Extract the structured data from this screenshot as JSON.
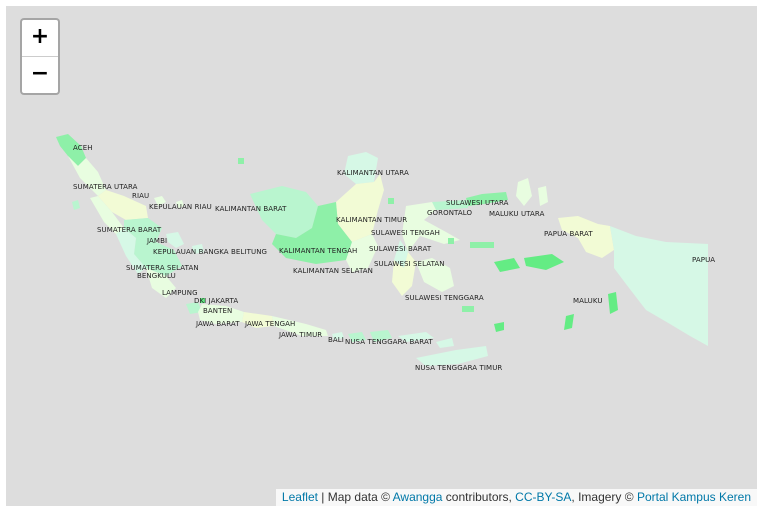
{
  "zoom": {
    "in_label": "+",
    "out_label": "−"
  },
  "colors": {
    "background": "#dddddd",
    "light": "#e8fde0",
    "mint": "#d6f8e6",
    "medium": "#b9f5cf",
    "green": "#8ef0a8",
    "bright": "#64ec84",
    "yellow": "#f2fbd5"
  },
  "provinces": [
    "ACEH",
    "SUMATERA UTARA",
    "RIAU",
    "KEPULAUAN RIAU",
    "KALIMANTAN BARAT",
    "SUMATERA BARAT",
    "JAMBI",
    "KEPULAUAN BANGKA BELITUNG",
    "KALIMANTAN TENGAH",
    "SUMATERA SELATAN",
    "BENGKULU",
    "LAMPUNG",
    "DKI JAKARTA",
    "BANTEN",
    "JAWA BARAT",
    "JAWA TENGAH",
    "JAWA TIMUR",
    "BALI",
    "NUSA TENGGARA BARAT",
    "NUSA TENGGARA TIMUR",
    "KALIMANTAN UTARA",
    "KALIMANTAN TIMUR",
    "KALIMANTAN SELATAN",
    "SULAWESI UTARA",
    "GORONTALO",
    "MALUKU UTARA",
    "SULAWESI TENGAH",
    "SULAWESI BARAT",
    "SULAWESI SELATAN",
    "SULAWESI TENGGARA",
    "PAPUA BARAT",
    "MALUKU",
    "PAPUA"
  ],
  "attribution": {
    "leaflet": "Leaflet",
    "sep": " | Map data © ",
    "awangga": "Awangga",
    "contributors": " contributors, ",
    "license": "CC-BY-SA",
    "imagery": ", Imagery © ",
    "portal": "Portal Kampus Keren"
  }
}
